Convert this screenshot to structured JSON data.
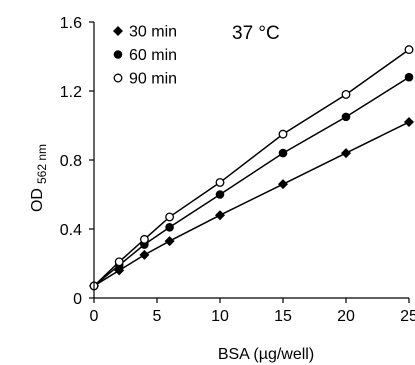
{
  "chart_data": {
    "type": "line",
    "title": "",
    "annotation": "37 °C",
    "xlabel": "BSA (µg/well)",
    "ylabel_main": "OD",
    "ylabel_sub": "562 nm",
    "xlim": [
      0,
      25
    ],
    "ylim": [
      0,
      1.6
    ],
    "xticks": [
      0,
      5,
      10,
      15,
      20,
      25
    ],
    "xtick_labels": [
      "0",
      "5",
      "10",
      "15",
      "20",
      "25"
    ],
    "yticks": [
      0,
      0.4,
      0.8,
      1.2,
      1.6
    ],
    "ytick_labels": [
      "0",
      "0.4",
      "0.8",
      "1.2",
      "1.6"
    ],
    "grid": false,
    "legend_position": "top-left",
    "x": [
      0,
      2,
      4,
      6,
      10,
      15,
      20,
      25
    ],
    "series": [
      {
        "name": "30 min",
        "marker": "diamond",
        "values": [
          0.07,
          0.16,
          0.25,
          0.33,
          0.48,
          0.66,
          0.84,
          1.02
        ]
      },
      {
        "name": "60 min",
        "marker": "filled-circle",
        "values": [
          0.07,
          0.19,
          0.31,
          0.41,
          0.6,
          0.84,
          1.05,
          1.28
        ]
      },
      {
        "name": "90 min",
        "marker": "open-circle",
        "values": [
          0.07,
          0.21,
          0.34,
          0.47,
          0.67,
          0.95,
          1.18,
          1.44
        ]
      }
    ],
    "colors": {
      "line": "#000000",
      "marker": "#000000",
      "background": "#ffffff"
    }
  }
}
